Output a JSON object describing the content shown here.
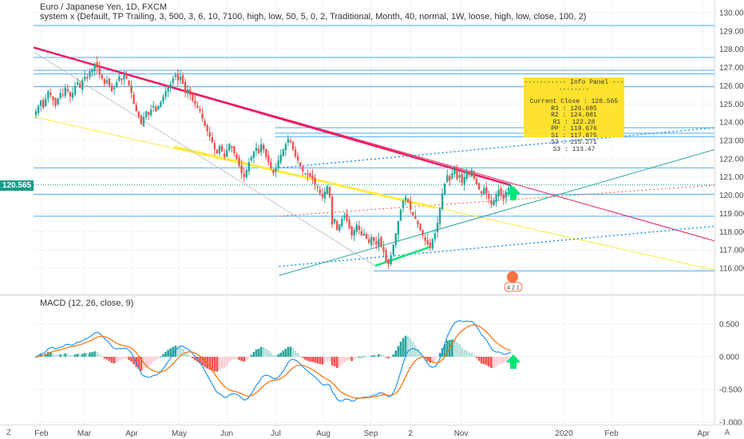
{
  "header": {
    "symbol_line": "Euro / Japanese Yen, 1D, FXCM",
    "indicator_line": "system x (Default, TP Trailing, 3, 500, 3, 6, 10, 7100, high, low, 50, 5, 0, 2, Traditional, Month, 40, normal, 1W, loose, high, low, close, 100, 2)"
  },
  "price_tag": "120.565",
  "info_panel": {
    "title": "-·-·-·-·-·- Info Panel -·-·-·-·-·-",
    "lines": [
      "Current Close : 120.565",
      "R3 : 126.685",
      "R2 : 124.081",
      "R1 : 122.28",
      "PP : 119.676",
      "S1 : 117.875",
      "S2 : 115.271",
      "S3 : 113.47"
    ]
  },
  "macd_label": "MACD (12, 26, close, 9)",
  "bottom_left_glyph": "Z",
  "bottom_right_glyph": "A",
  "badge_text": "4 2 1",
  "colors": {
    "up": "#26a69a",
    "down": "#ef5350",
    "macd": "#2196f3",
    "signal": "#ff6d00",
    "hist_up_strong": "#26a69a",
    "hist_up_weak": "#b2dfdb",
    "hist_down_strong": "#ef5350",
    "hist_down_weak": "#ffcdd2",
    "main_trend": "#e91e63",
    "yellow_trend": "#ffeb3b",
    "level_line": "#2196f3",
    "arrow": "#00e676"
  },
  "chart_data": [
    {
      "type": "candlestick",
      "title": "Euro / Japanese Yen, 1D, FXCM",
      "y_ticks": [
        "130.000",
        "129.000",
        "128.000",
        "127.000",
        "126.000",
        "125.000",
        "124.000",
        "123.000",
        "122.000",
        "121.000",
        "120.000",
        "119.000",
        "118.000",
        "117.000",
        "116.000"
      ],
      "x_ticks": [
        "Feb",
        "Mar",
        "Apr",
        "May",
        "Jun",
        "Jul",
        "Aug",
        "Sep",
        "2",
        "Nov",
        "2020",
        "Feb",
        "Apr"
      ],
      "ylim": [
        115.6,
        130.3
      ],
      "xlim_days": [
        0,
        430
      ],
      "last_close": 120.565,
      "horizontal_levels": [
        129.3,
        127.55,
        126.85,
        126.65,
        125.95,
        123.7,
        123.4,
        123.2,
        121.5,
        120.05,
        118.85,
        115.85
      ],
      "trend_lines": [
        {
          "name": "main",
          "from": [
            0,
            128.1
          ],
          "to": [
            430,
            117.5
          ]
        },
        {
          "name": "yellow",
          "from": [
            0,
            124.3
          ],
          "to": [
            430,
            115.9
          ]
        },
        {
          "name": "green_support",
          "from": [
            155,
            115.6
          ],
          "to": [
            430,
            122.5
          ]
        },
        {
          "name": "blue_dotted_upper",
          "from": [
            155,
            121.5
          ],
          "to": [
            430,
            123.7
          ]
        },
        {
          "name": "blue_dotted_lower",
          "from": [
            155,
            116.1
          ],
          "to": [
            430,
            118.3
          ]
        },
        {
          "name": "red_dotted",
          "from": [
            155,
            118.85
          ],
          "to": [
            430,
            120.55
          ]
        }
      ],
      "closes": [
        124.6,
        124.9,
        125.2,
        124.8,
        125.3,
        125.7,
        125.5,
        125.2,
        124.9,
        125.3,
        125.6,
        125.5,
        125.9,
        125.7,
        125.4,
        125.6,
        126.0,
        126.2,
        125.9,
        126.3,
        126.5,
        126.4,
        126.8,
        126.9,
        127.2,
        127.0,
        126.6,
        126.4,
        126.1,
        126.3,
        126.0,
        125.7,
        125.9,
        126.2,
        126.5,
        126.3,
        126.6,
        126.4,
        126.0,
        125.6,
        125.0,
        124.6,
        124.3,
        123.9,
        124.3,
        124.6,
        124.4,
        124.7,
        124.9,
        124.6,
        124.9,
        125.1,
        125.4,
        125.7,
        125.9,
        126.1,
        126.4,
        126.6,
        126.3,
        126.5,
        126.1,
        125.6,
        125.8,
        125.5,
        125.2,
        125.0,
        124.8,
        124.6,
        124.2,
        123.8,
        123.5,
        123.2,
        122.9,
        122.5,
        122.3,
        122.7,
        122.4,
        122.1,
        122.5,
        122.8,
        122.6,
        122.3,
        122.0,
        121.6,
        121.2,
        121.0,
        121.4,
        121.8,
        122.1,
        122.4,
        122.6,
        122.3,
        122.8,
        122.5,
        122.1,
        121.8,
        121.5,
        121.2,
        121.5,
        121.9,
        122.2,
        122.5,
        122.8,
        123.1,
        122.9,
        122.5,
        122.1,
        121.9,
        121.6,
        121.3,
        121.2,
        121.1,
        121.0,
        120.9,
        120.6,
        120.4,
        120.1,
        119.9,
        120.2,
        120.5,
        119.9,
        118.4,
        118.7,
        118.1,
        118.4,
        118.7,
        118.9,
        118.6,
        118.2,
        117.8,
        118.1,
        118.4,
        118.1,
        117.8,
        117.9,
        117.6,
        117.4,
        117.7,
        117.5,
        117.3,
        117.6,
        117.2,
        116.9,
        116.4,
        116.2,
        116.7,
        117.3,
        117.9,
        118.6,
        119.2,
        119.7,
        119.9,
        119.6,
        119.2,
        118.9,
        118.7,
        118.4,
        118.1,
        117.8,
        117.5,
        117.3,
        117.2,
        117.6,
        117.9,
        118.5,
        119.3,
        120.1,
        120.6,
        121.1,
        120.8,
        121.2,
        121.4,
        120.9,
        121.1,
        120.7,
        121.0,
        121.3,
        121.1,
        121.4,
        120.9,
        120.6,
        120.3,
        120.1,
        120.4,
        120.1,
        119.8,
        119.5,
        119.7,
        120.0,
        120.3,
        120.0,
        119.8,
        120.2,
        120.4,
        120.565
      ]
    },
    {
      "type": "line",
      "title": "MACD (12, 26, close, 9)",
      "y_ticks": [
        "0.500",
        "0.000",
        "-0.500",
        "-1.000"
      ],
      "ylim": [
        -1.08,
        0.92
      ]
    }
  ]
}
